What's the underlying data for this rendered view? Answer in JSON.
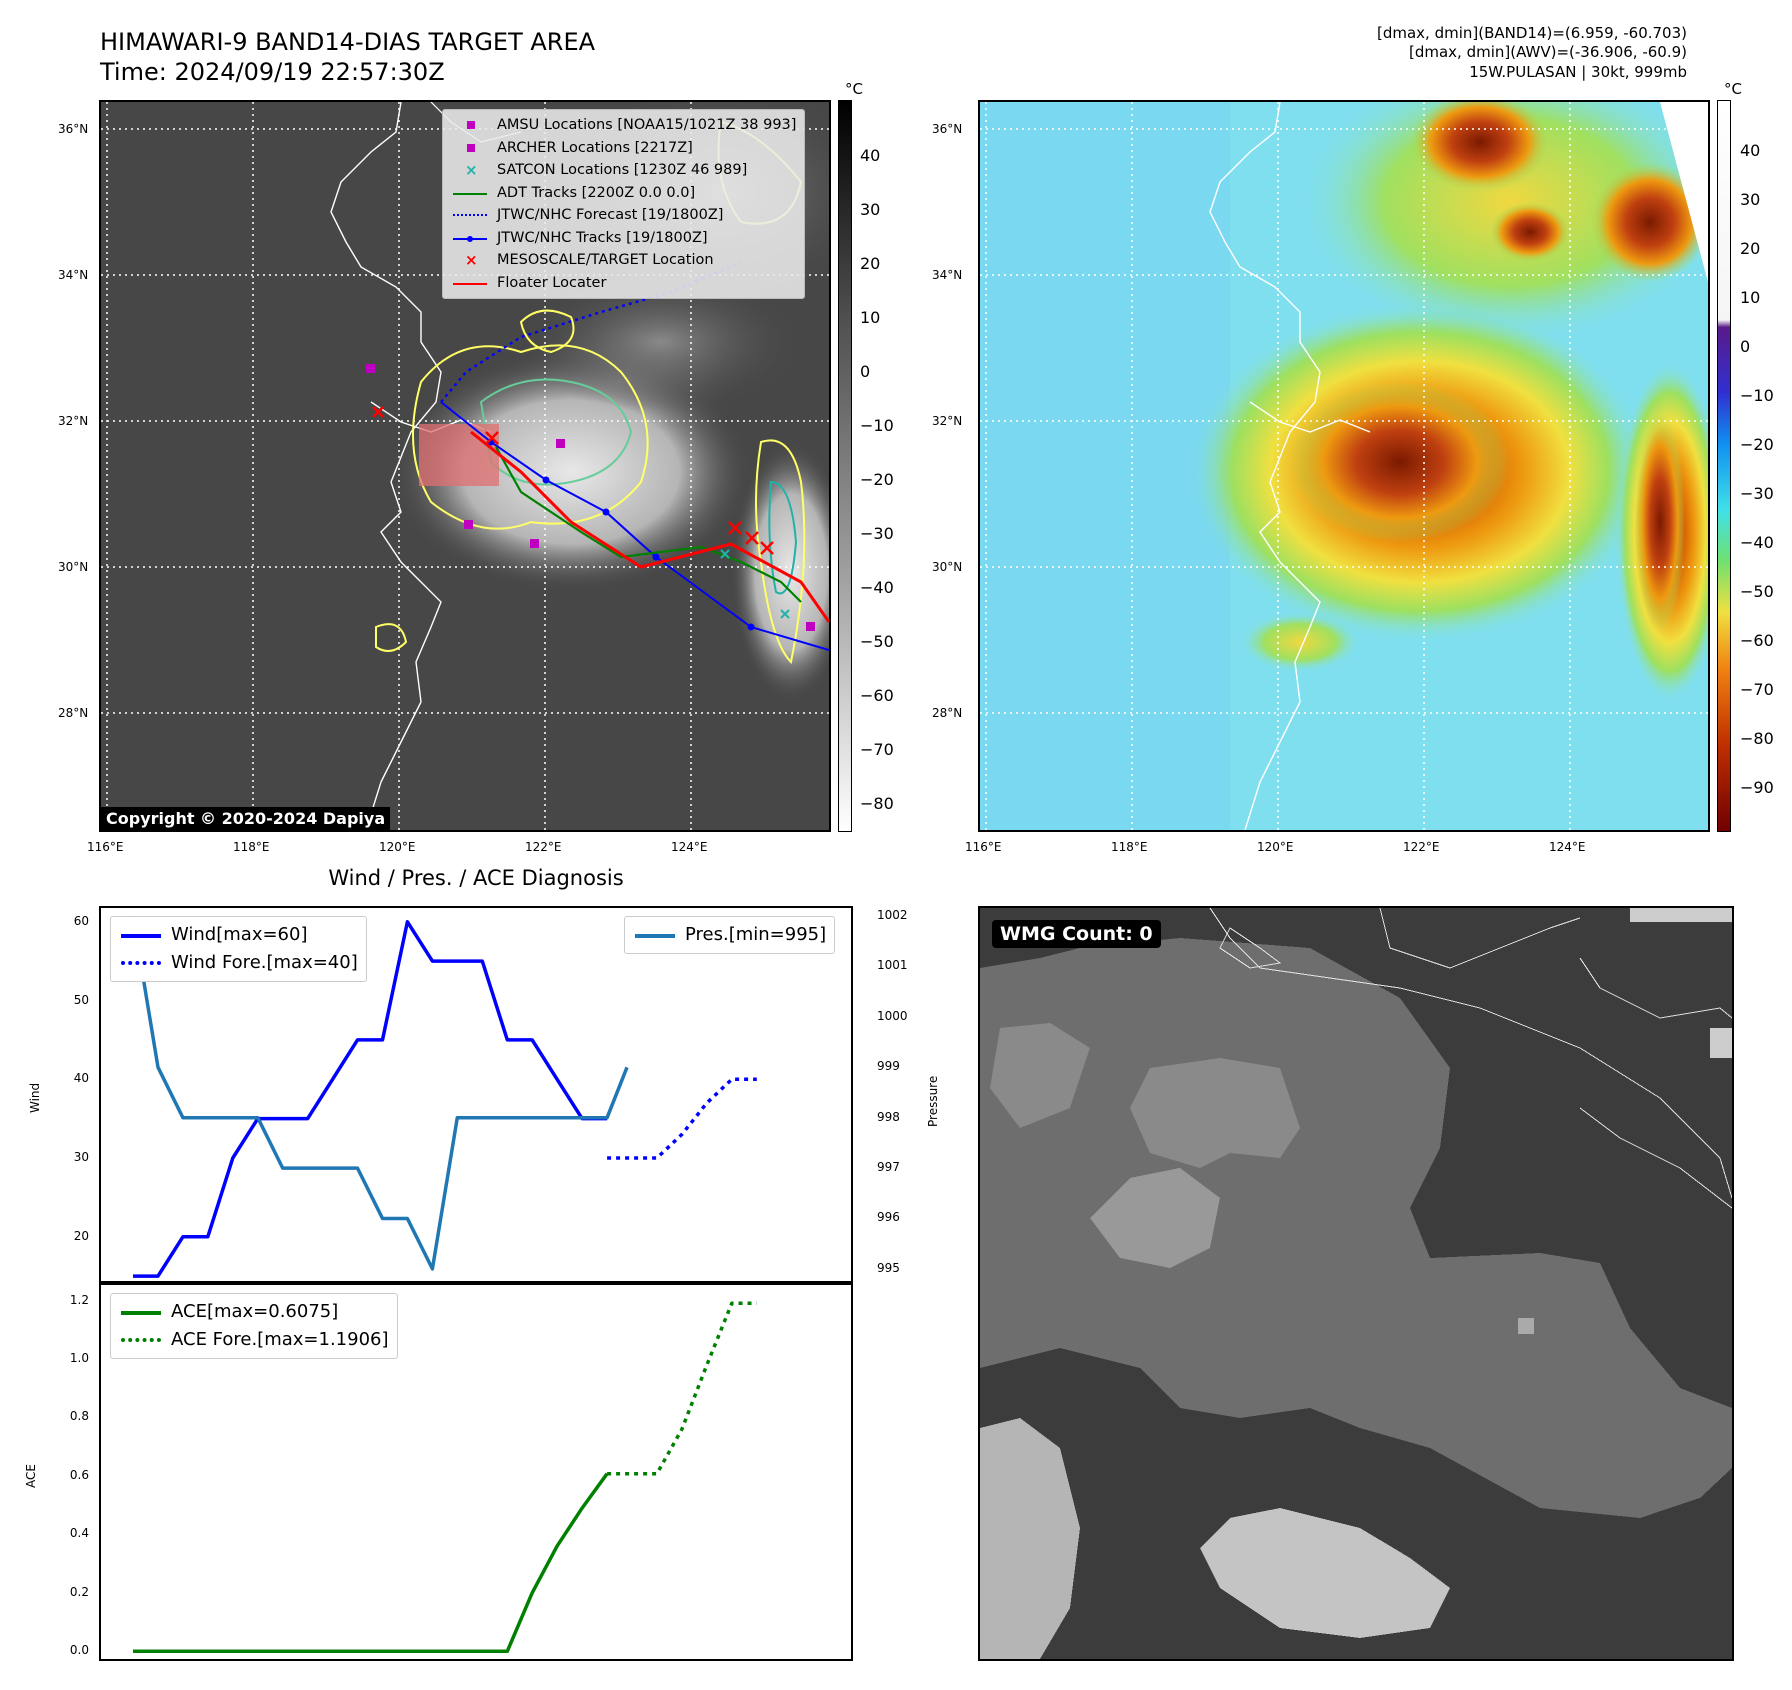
{
  "header": {
    "title_line1": "HIMAWARI-9 BAND14-DIAS TARGET AREA",
    "title_line2": "Time: 2024/09/19 22:57:30Z",
    "info_line1": "[dmax, dmin](BAND14)=(6.959, -60.703)",
    "info_line2": "[dmax, dmin](AWV)=(-36.906, -60.9)",
    "info_line3": "15W.PULASAN | 30kt, 999mb"
  },
  "map": {
    "lat_labels": [
      "36°N",
      "34°N",
      "32°N",
      "30°N",
      "28°N"
    ],
    "lon_labels": [
      "116°E",
      "118°E",
      "120°E",
      "122°E",
      "124°E"
    ],
    "copyright": "Copyright © 2020-2024 Dapiya",
    "unit": "°C",
    "bw_colorbar_ticks": [
      "40",
      "30",
      "20",
      "10",
      "0",
      "−10",
      "−20",
      "−30",
      "−40",
      "−50",
      "−60",
      "−70",
      "−80"
    ],
    "color_colorbar_ticks": [
      "40",
      "30",
      "20",
      "10",
      "0",
      "−10",
      "−20",
      "−30",
      "−40",
      "−50",
      "−60",
      "−70",
      "−80",
      "−90"
    ],
    "legend": [
      {
        "label": "AMSU Locations [NOAA15/1021Z 38 993]",
        "symbol": "square",
        "color": "#c000c0"
      },
      {
        "label": "ARCHER Locations [2217Z]",
        "symbol": "square",
        "color": "#c000c0"
      },
      {
        "label": "SATCON Locations [1230Z 46 989]",
        "symbol": "x",
        "color": "#20b2aa"
      },
      {
        "label": "ADT Tracks [2200Z 0.0 0.0]",
        "symbol": "line",
        "color": "#008000"
      },
      {
        "label": "JTWC/NHC Forecast [19/1800Z]",
        "symbol": "dotted",
        "color": "#0000ff"
      },
      {
        "label": "JTWC/NHC Tracks [19/1800Z]",
        "symbol": "line-dot",
        "color": "#0000ff"
      },
      {
        "label": "MESOSCALE/TARGET Location",
        "symbol": "x",
        "color": "#ff0000"
      },
      {
        "label": "Floater Locater",
        "symbol": "line",
        "color": "#ff0000"
      }
    ]
  },
  "wmg": {
    "badge": "WMG Count: 0"
  },
  "chart_data": [
    {
      "type": "line",
      "title": "Wind / Pres. / ACE Diagnosis",
      "ylabel": "Wind",
      "y2label": "Pressure",
      "ylim": [
        14,
        62
      ],
      "y2lim": [
        994.7,
        1002.2
      ],
      "yticks": [
        20,
        30,
        40,
        50,
        60
      ],
      "y2ticks": [
        995,
        996,
        997,
        998,
        999,
        1000,
        1001,
        1002
      ],
      "series": [
        {
          "name": "Wind[max=60]",
          "axis": "left",
          "style": "solid",
          "color": "#0000ff",
          "x": [
            0,
            1,
            2,
            3,
            4,
            5,
            6,
            7,
            8,
            9,
            10,
            11,
            12,
            13,
            14,
            15,
            16,
            17,
            18,
            19
          ],
          "values": [
            15,
            15,
            20,
            20,
            30,
            35,
            35,
            35,
            40,
            45,
            45,
            60,
            55,
            55,
            55,
            45,
            45,
            40,
            35,
            35
          ]
        },
        {
          "name": "Wind Fore.[max=40]",
          "axis": "left",
          "style": "dotted",
          "color": "#0000ff",
          "x": [
            19,
            20,
            21,
            22,
            23,
            24,
            25
          ],
          "values": [
            30,
            30,
            30,
            33,
            37,
            40,
            40
          ]
        },
        {
          "name": "Pres.[min=995]",
          "axis": "right",
          "style": "solid",
          "color": "#1f77b4",
          "x": [
            0,
            1,
            2,
            3,
            4,
            5,
            6,
            7,
            8,
            9,
            10,
            11,
            12,
            13,
            14,
            15,
            16,
            17,
            18,
            19
          ],
          "values": [
            1002,
            999,
            998,
            998,
            998,
            998,
            997,
            997,
            997,
            997,
            996,
            996,
            995,
            998,
            998,
            998,
            998,
            998,
            998,
            998
          ],
          "extra": {
            "x": 19.8,
            "value": 999
          }
        }
      ]
    },
    {
      "type": "line",
      "ylabel": "ACE",
      "ylim": [
        -0.04,
        1.26
      ],
      "yticks": [
        0.0,
        0.2,
        0.4,
        0.6,
        0.8,
        1.0,
        1.2
      ],
      "ytick_labels": [
        "0.0",
        "0.2",
        "0.4",
        "0.6",
        "0.8",
        "1.0",
        "1.2"
      ],
      "series": [
        {
          "name": "ACE[max=0.6075]",
          "style": "solid",
          "color": "#008000",
          "x": [
            0,
            1,
            2,
            3,
            4,
            5,
            6,
            7,
            8,
            9,
            10,
            11,
            12,
            13,
            14,
            15,
            16,
            17,
            18,
            19
          ],
          "values": [
            0,
            0,
            0,
            0,
            0,
            0,
            0,
            0,
            0,
            0,
            0,
            0,
            0,
            0,
            0,
            0,
            0.2,
            0.36,
            0.49,
            0.6075
          ]
        },
        {
          "name": "ACE Fore.[max=1.1906]",
          "style": "dotted",
          "color": "#008000",
          "x": [
            19,
            20,
            21,
            22,
            23,
            24,
            25
          ],
          "values": [
            0.6075,
            0.6075,
            0.6075,
            0.76,
            0.98,
            1.1906,
            1.1906
          ]
        }
      ]
    }
  ]
}
